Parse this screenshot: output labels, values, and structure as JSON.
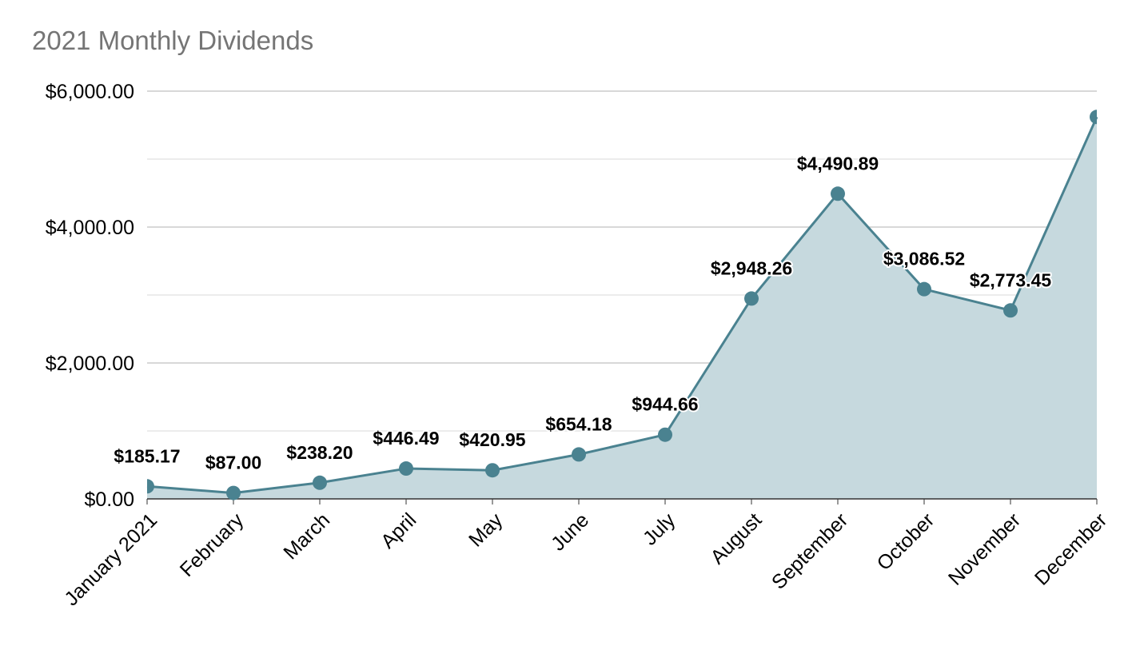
{
  "chart_data": {
    "type": "area",
    "title": "2021 Monthly Dividends",
    "categories": [
      "January 2021",
      "February",
      "March",
      "April",
      "May",
      "June",
      "July",
      "August",
      "September",
      "October",
      "November",
      "December"
    ],
    "series": [
      {
        "values": [
          185.17,
          87.0,
          238.2,
          446.49,
          420.95,
          654.18,
          944.66,
          2948.26,
          4490.89,
          3086.52,
          2773.45,
          5620.0
        ],
        "data_labels": [
          "$185.17",
          "$87.00",
          "$238.20",
          "$446.49",
          "$420.95",
          "$654.18",
          "$944.66",
          "$2,948.26",
          "$4,490.89",
          "$3,086.52",
          "$2,773.45",
          ""
        ]
      }
    ],
    "ylim": [
      0,
      6000
    ],
    "yticks": [
      0,
      2000,
      4000,
      6000
    ],
    "ytick_labels": [
      "$0.00",
      "$2,000.00",
      "$4,000.00",
      "$6,000.00"
    ],
    "minor_grid": [
      1000,
      3000,
      5000
    ],
    "grid": true,
    "legend": "none",
    "colors": {
      "line": "#4a8290",
      "fill": "#c6d9de",
      "grid": "#cccccc",
      "minor_grid": "#e6e6e6",
      "axis": "#333333"
    }
  }
}
